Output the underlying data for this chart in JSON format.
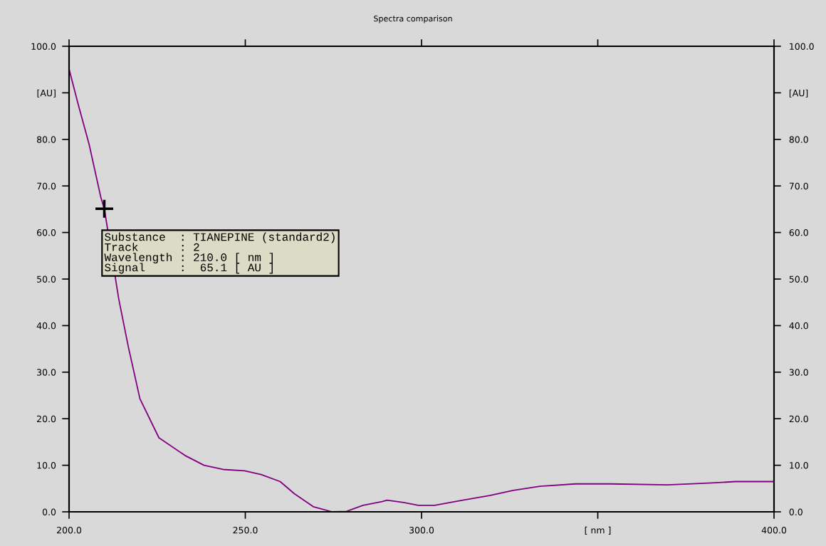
{
  "chart_data": {
    "type": "line",
    "title": "Spectra comparison",
    "x": [
      200,
      202.6,
      205.7,
      209,
      210,
      214.1,
      216.8,
      220.1,
      225.5,
      232.9,
      238.3,
      243.7,
      249.8,
      254.5,
      259.9,
      263.9,
      269.3,
      274.7,
      278.7,
      283.4,
      288.8,
      290.2,
      294.9,
      299.1,
      303.7,
      311.7,
      319.3,
      326,
      333.6,
      343.7,
      353.8,
      369.8,
      382.4,
      389.1,
      400
    ],
    "series": [
      {
        "color": "#800080",
        "values": [
          95.1,
          87.5,
          78.9,
          67.6,
          65.1,
          45.7,
          35.5,
          24.3,
          15.9,
          12.1,
          10.0,
          9.1,
          8.8,
          8.0,
          6.5,
          3.9,
          1.1,
          0,
          0.1,
          1.4,
          2.2,
          2.5,
          2.0,
          1.4,
          1.4,
          2.5,
          3.5,
          4.6,
          5.5,
          6.0,
          6.0,
          5.8,
          6.2,
          6.5,
          6.5
        ]
      }
    ],
    "xlim": [
      200,
      400
    ],
    "xticks": [
      {
        "value": 200,
        "label": "200.0"
      },
      {
        "value": 250,
        "label": "250.0"
      },
      {
        "value": 300,
        "label": "300.0"
      },
      {
        "value": 350,
        "label": "[ nm ]"
      },
      {
        "value": 400,
        "label": "400.0"
      }
    ],
    "ylim": [
      0,
      100
    ],
    "yticks": [
      {
        "value": 0,
        "label": "0.0"
      },
      {
        "value": 10,
        "label": "10.0"
      },
      {
        "value": 20,
        "label": "20.0"
      },
      {
        "value": 30,
        "label": "30.0"
      },
      {
        "value": 40,
        "label": "40.0"
      },
      {
        "value": 50,
        "label": "50.0"
      },
      {
        "value": 60,
        "label": "60.0"
      },
      {
        "value": 70,
        "label": "70.0"
      },
      {
        "value": 80,
        "label": "80.0"
      },
      {
        "value": 90,
        "label": "[AU]"
      },
      {
        "value": 100,
        "label": "100.0"
      }
    ],
    "y2lim": [
      0,
      100
    ],
    "y2ticks": [
      {
        "value": 0,
        "label": "0.0"
      },
      {
        "value": 10,
        "label": "10.0"
      },
      {
        "value": 20,
        "label": "20.0"
      },
      {
        "value": 30,
        "label": "30.0"
      },
      {
        "value": 40,
        "label": "40.0"
      },
      {
        "value": 50,
        "label": "50.0"
      },
      {
        "value": 60,
        "label": "60.0"
      },
      {
        "value": 70,
        "label": "70.0"
      },
      {
        "value": 80,
        "label": "80.0"
      },
      {
        "value": 90,
        "label": "[AU]"
      },
      {
        "value": 100,
        "label": "100.0"
      }
    ],
    "annotations": [
      {
        "text": "Substance  : TIANEPINE (standard2)\nTrack      : 2\nWavelength : 210.0 [ nm ]\nSignal     :  65.1 [ AU ]",
        "x": 210,
        "y": 65.1
      }
    ],
    "grid": false,
    "legend": false,
    "marker": "none",
    "line_style": "solid"
  }
}
